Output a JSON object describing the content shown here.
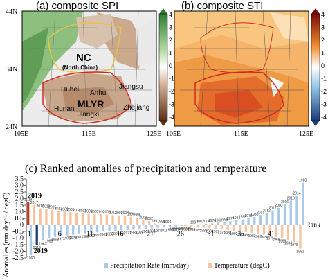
{
  "panel_a": {
    "title": "(a)   composite SPI",
    "lat_ticks": [
      "44N",
      "34N",
      "24N"
    ],
    "lon_ticks": [
      "105E",
      "115E",
      "125E"
    ],
    "colorbar": [
      "4",
      "3",
      "2",
      "1",
      "0",
      "-1",
      "-2",
      "-3",
      "-4"
    ],
    "labels": {
      "nc": "NC",
      "nc_sub": "(North China)",
      "mlyr": "MLYR",
      "provinces": [
        "Hubei",
        "Anhui",
        "Jiangsu",
        "Hunan",
        "Jiangxi",
        "Zhejiang"
      ]
    }
  },
  "panel_b": {
    "title": "(b)   composite STI",
    "lat_ticks": [
      "44N",
      "34N",
      "24N"
    ],
    "lon_ticks": [
      "105E",
      "115E",
      "125E"
    ],
    "colorbar": [
      "4",
      "3",
      "2",
      "1",
      "0",
      "-1",
      "-2",
      "-3",
      "-4"
    ]
  },
  "chart_data": {
    "type": "bar",
    "title": "(c)   Ranked anomalies of precipitation and temperature",
    "ylabel": "Anomalies (mm day⁻¹ / degC)",
    "ylim": [
      -2.5,
      3.5
    ],
    "yticks": [
      "3.5",
      "3.0",
      "2.5",
      "2.0",
      "1.5",
      "1.0",
      "0.5",
      "0",
      "-0.5",
      "-1.0",
      "-1.5",
      "-2.0",
      "-2.5"
    ],
    "rank_label": "Rank",
    "rank_ticks": [
      "1",
      "6",
      "11",
      "16",
      "21",
      "26",
      "31",
      "36",
      "41"
    ],
    "highlight_label": "2019",
    "legend": [
      "Precipitation Rate (mm/day)",
      "Temperature (degC)"
    ],
    "colors": {
      "precip": "#a9c9e6",
      "temp": "#f5c39f",
      "precip_hl": "#1f3f7a",
      "temp_hl": "#c23b22"
    },
    "series": [
      {
        "name": "Precipitation Rate (mm/day)",
        "values": [
          -2.3,
          -1.5,
          -1.2,
          -1.0,
          -0.9,
          -0.85,
          -0.8,
          -0.75,
          -0.7,
          -0.65,
          -0.6,
          -0.55,
          -0.5,
          -0.48,
          -0.45,
          -0.42,
          -0.4,
          -0.37,
          -0.34,
          -0.3,
          -0.27,
          -0.24,
          -0.2,
          -0.16,
          -0.12,
          -0.08,
          -0.04,
          0.0,
          0.04,
          0.08,
          0.12,
          0.17,
          0.22,
          0.28,
          0.34,
          0.42,
          0.5,
          0.6,
          0.75,
          0.9,
          1.1,
          1.3,
          1.55,
          1.85,
          2.2,
          3.2
        ]
      },
      {
        "name": "Temperature (degC)",
        "values": [
          1.75,
          1.5,
          1.25,
          1.2,
          1.15,
          1.05,
          1.0,
          0.97,
          0.93,
          0.9,
          0.85,
          0.82,
          0.8,
          0.78,
          0.75,
          0.72,
          0.7,
          0.62,
          0.55,
          0.38,
          0.3,
          0.1,
          0.05,
          0.02,
          -0.02,
          -0.06,
          -0.1,
          -0.14,
          -0.18,
          -0.22,
          -0.26,
          -0.3,
          -0.34,
          -0.4,
          -0.45,
          -0.5,
          -0.55,
          -0.6,
          -0.65,
          -0.72,
          -0.8,
          -0.9,
          -1.0,
          -1.15,
          -1.3,
          -1.8
        ]
      }
    ],
    "precip_years": [
      "1960",
      "2019",
      "1963",
      "1965",
      "1968",
      "1972",
      "1975",
      "1978",
      "1981",
      "1986",
      "1992",
      "1997",
      "2001",
      "2006",
      "2009",
      "1966",
      "1971",
      "1988",
      "1999",
      "2002",
      "1991",
      "1974",
      "2011",
      "1989",
      "1970",
      "1984",
      "1995",
      "1987",
      "2007",
      "2004",
      "1976",
      "1962",
      "1958",
      "1977",
      "1994",
      "1985",
      "1979",
      "1980",
      "2013",
      "2012",
      "2017",
      "2000",
      "2016",
      "2010",
      "2014",
      "1983"
    ],
    "temp_years": [
      "2019",
      "2017",
      "2016",
      "2018",
      "2015",
      "2013",
      "2009",
      "2005",
      "2014",
      "2011",
      "2006",
      "2007",
      "2010",
      "2008",
      "2012",
      "2003",
      "2004",
      "1998",
      "1996",
      "2000",
      "2002",
      "1991",
      "1999",
      "1994",
      "1988",
      "1990",
      "1987",
      "1993",
      "1985",
      "1989",
      "1980",
      "1979",
      "1976",
      "1984",
      "1992",
      "1983",
      "1986",
      "1982",
      "1967",
      "1974",
      "1975",
      "1968",
      "1969",
      "1984",
      "1978",
      "1981"
    ]
  }
}
